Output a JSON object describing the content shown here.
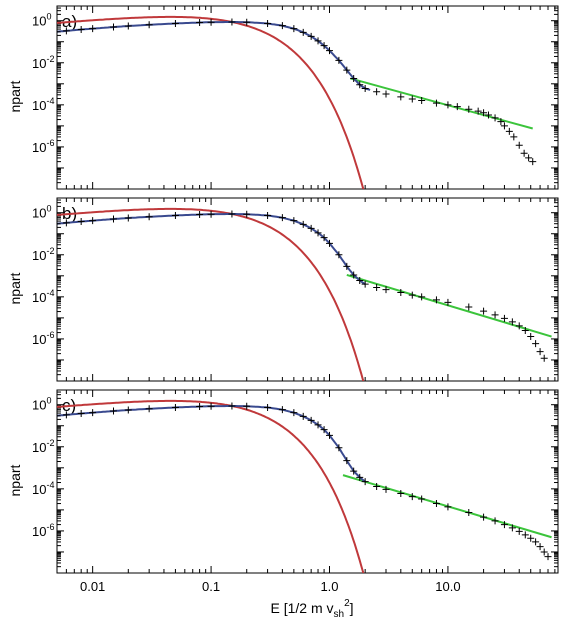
{
  "chart_data": [
    {
      "type": "scatter",
      "panel_label": "a)",
      "ylabel": "npart",
      "xscale": "log",
      "yscale": "log",
      "xlim": [
        0.005,
        85
      ],
      "ylim": [
        1e-08,
        5
      ],
      "ytick_exponents": [
        "0",
        "-2",
        "-4",
        "-6"
      ],
      "grid": false,
      "series": [
        {
          "marker": "+",
          "color": "#000000",
          "points": [
            [
              0.005,
              0.3
            ],
            [
              0.006,
              0.33
            ],
            [
              0.008,
              0.38
            ],
            [
              0.01,
              0.42
            ],
            [
              0.015,
              0.5
            ],
            [
              0.02,
              0.56
            ],
            [
              0.03,
              0.64
            ],
            [
              0.05,
              0.74
            ],
            [
              0.08,
              0.82
            ],
            [
              0.1,
              0.85
            ],
            [
              0.15,
              0.87
            ],
            [
              0.2,
              0.85
            ],
            [
              0.3,
              0.74
            ],
            [
              0.4,
              0.58
            ],
            [
              0.5,
              0.42
            ],
            [
              0.6,
              0.28
            ],
            [
              0.7,
              0.18
            ],
            [
              0.8,
              0.11
            ],
            [
              0.9,
              0.065
            ],
            [
              1.0,
              0.038
            ],
            [
              1.2,
              0.013
            ],
            [
              1.4,
              0.0045
            ],
            [
              1.6,
              0.0018
            ],
            [
              1.8,
              0.0009
            ],
            [
              2.0,
              0.0006
            ],
            [
              2.5,
              0.00042
            ],
            [
              3.0,
              0.00033
            ],
            [
              4.0,
              0.00024
            ],
            [
              5.0,
              0.00019
            ],
            [
              6.0,
              0.00016
            ],
            [
              8.0,
              0.00012
            ],
            [
              10.0,
              0.0001
            ],
            [
              12.0,
              8.2e-05
            ],
            [
              15.0,
              6.2e-05
            ],
            [
              18.0,
              5e-05
            ],
            [
              20.0,
              4.2e-05
            ],
            [
              22.0,
              3.3e-05
            ],
            [
              25.0,
              2.4e-05
            ],
            [
              28.0,
              1.6e-05
            ],
            [
              30.0,
              1e-05
            ],
            [
              33.0,
              5.5e-06
            ],
            [
              36.0,
              3e-06
            ],
            [
              40.0,
              1.2e-06
            ],
            [
              44.0,
              5e-07
            ],
            [
              48.0,
              3e-07
            ],
            [
              52.0,
              2e-07
            ]
          ]
        },
        {
          "line": "maxwellian",
          "color": "#c0393b",
          "peak": 0.87,
          "peak_x": 0.15,
          "x_range": [
            0.005,
            5.2
          ]
        },
        {
          "line": "power-law",
          "color": "#3bc43b",
          "x_range": [
            1.5,
            52
          ],
          "y_range": [
            0.0018,
            7.5e-06
          ]
        },
        {
          "line": "model-fit",
          "color": "#3a4a8f",
          "x_range": [
            0.005,
            2.2
          ]
        }
      ]
    },
    {
      "type": "scatter",
      "panel_label": "b)",
      "ylabel": "npart",
      "xscale": "log",
      "yscale": "log",
      "xlim": [
        0.005,
        85
      ],
      "ylim": [
        1e-08,
        5
      ],
      "ytick_exponents": [
        "0",
        "-2",
        "-4",
        "-6"
      ],
      "grid": false,
      "series": [
        {
          "marker": "+",
          "color": "#000000",
          "points": [
            [
              0.005,
              0.3
            ],
            [
              0.006,
              0.33
            ],
            [
              0.008,
              0.38
            ],
            [
              0.01,
              0.42
            ],
            [
              0.015,
              0.5
            ],
            [
              0.02,
              0.56
            ],
            [
              0.03,
              0.64
            ],
            [
              0.05,
              0.74
            ],
            [
              0.08,
              0.82
            ],
            [
              0.1,
              0.85
            ],
            [
              0.15,
              0.87
            ],
            [
              0.2,
              0.85
            ],
            [
              0.3,
              0.74
            ],
            [
              0.4,
              0.58
            ],
            [
              0.5,
              0.42
            ],
            [
              0.6,
              0.28
            ],
            [
              0.7,
              0.18
            ],
            [
              0.8,
              0.11
            ],
            [
              0.9,
              0.065
            ],
            [
              1.0,
              0.035
            ],
            [
              1.2,
              0.01
            ],
            [
              1.4,
              0.0028
            ],
            [
              1.6,
              0.0011
            ],
            [
              1.8,
              0.0006
            ],
            [
              2.0,
              0.0004
            ],
            [
              2.5,
              0.00028
            ],
            [
              3.0,
              0.00022
            ],
            [
              4.0,
              0.00016
            ],
            [
              5.0,
              0.00012
            ],
            [
              6.0,
              0.0001
            ],
            [
              8.0,
              7.2e-05
            ],
            [
              10.0,
              5.5e-05
            ],
            [
              15.0,
              3.3e-05
            ],
            [
              20.0,
              2.1e-05
            ],
            [
              25.0,
              1.4e-05
            ],
            [
              30.0,
              9.5e-06
            ],
            [
              35.0,
              6.5e-06
            ],
            [
              40.0,
              4.2e-06
            ],
            [
              45.0,
              2.5e-06
            ],
            [
              50.0,
              1.3e-06
            ],
            [
              55.0,
              6e-07
            ],
            [
              60.0,
              2.5e-07
            ],
            [
              65.0,
              1.2e-07
            ]
          ]
        },
        {
          "line": "maxwellian",
          "color": "#c0393b",
          "peak": 0.87,
          "peak_x": 0.15,
          "x_range": [
            0.005,
            4.0
          ]
        },
        {
          "line": "power-law",
          "color": "#3bc43b",
          "x_range": [
            1.4,
            75
          ],
          "y_range": [
            0.0011,
            1.3e-06
          ]
        },
        {
          "line": "model-fit",
          "color": "#3a4a8f",
          "x_range": [
            0.005,
            2.0
          ]
        }
      ]
    },
    {
      "type": "scatter",
      "panel_label": "c)",
      "ylabel": "npart",
      "xlabel": "E [1/2 m v",
      "xlabel_sub": "sh",
      "xlabel_sup": "2",
      "xlabel_end": "]",
      "xscale": "log",
      "yscale": "log",
      "xlim": [
        0.005,
        85
      ],
      "ylim": [
        1e-08,
        5
      ],
      "xticks": [
        "0.01",
        "0.1",
        "1.0",
        "10.0"
      ],
      "ytick_exponents": [
        "0",
        "-2",
        "-4",
        "-6"
      ],
      "grid": false,
      "series": [
        {
          "marker": "+",
          "color": "#000000",
          "points": [
            [
              0.005,
              0.3
            ],
            [
              0.006,
              0.33
            ],
            [
              0.008,
              0.38
            ],
            [
              0.01,
              0.42
            ],
            [
              0.015,
              0.5
            ],
            [
              0.02,
              0.56
            ],
            [
              0.03,
              0.64
            ],
            [
              0.05,
              0.74
            ],
            [
              0.08,
              0.82
            ],
            [
              0.1,
              0.85
            ],
            [
              0.15,
              0.87
            ],
            [
              0.2,
              0.85
            ],
            [
              0.3,
              0.74
            ],
            [
              0.4,
              0.58
            ],
            [
              0.5,
              0.42
            ],
            [
              0.6,
              0.28
            ],
            [
              0.7,
              0.18
            ],
            [
              0.8,
              0.11
            ],
            [
              0.9,
              0.065
            ],
            [
              1.0,
              0.035
            ],
            [
              1.2,
              0.009
            ],
            [
              1.4,
              0.0022
            ],
            [
              1.6,
              0.0007
            ],
            [
              1.8,
              0.00035
            ],
            [
              2.0,
              0.00022
            ],
            [
              2.5,
              0.00013
            ],
            [
              3.0,
              9.5e-05
            ],
            [
              4.0,
              6e-05
            ],
            [
              5.0,
              4.3e-05
            ],
            [
              6.0,
              3.3e-05
            ],
            [
              8.0,
              2e-05
            ],
            [
              10.0,
              1.4e-05
            ],
            [
              15.0,
              7.5e-06
            ],
            [
              20.0,
              4.5e-06
            ],
            [
              25.0,
              3e-06
            ],
            [
              30.0,
              2e-06
            ],
            [
              35.0,
              1.4e-06
            ],
            [
              40.0,
              9.5e-07
            ],
            [
              45.0,
              6.5e-07
            ],
            [
              50.0,
              4.5e-07
            ],
            [
              55.0,
              3e-07
            ],
            [
              60.0,
              1.8e-07
            ],
            [
              65.0,
              1e-07
            ],
            [
              70.0,
              6e-08
            ]
          ]
        },
        {
          "line": "maxwellian",
          "color": "#c0393b",
          "peak": 0.87,
          "peak_x": 0.15,
          "x_range": [
            0.005,
            3.0
          ]
        },
        {
          "line": "power-law",
          "color": "#3bc43b",
          "x_range": [
            1.3,
            75
          ],
          "y_range": [
            0.00045,
            5e-07
          ]
        },
        {
          "line": "model-fit",
          "color": "#3a4a8f",
          "x_range": [
            0.005,
            2.0
          ]
        }
      ]
    }
  ]
}
